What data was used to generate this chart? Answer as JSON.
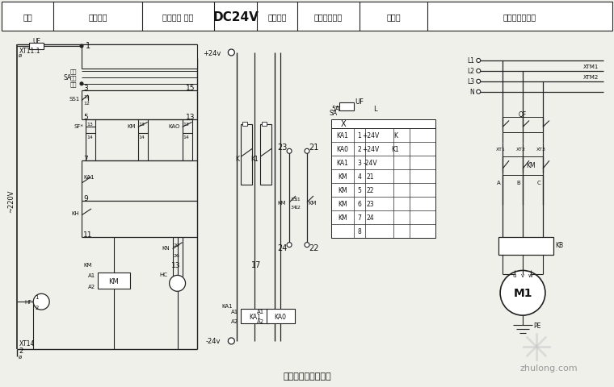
{
  "title": "排烟风机控制电路图",
  "bg": "#f0f0eb",
  "lc": "#222222",
  "header_labels": [
    "电源",
    "手动控制",
    "消防控制 自控",
    "DC24V",
    "消防外套",
    "消防返回信号",
    "端子排",
    "排烟风机主回路"
  ],
  "fig_width": 7.6,
  "fig_height": 4.81,
  "watermark": "zhulong.com",
  "table_rows": [
    [
      "KA1",
      "1",
      "+24V",
      "K"
    ],
    [
      "KA0",
      "2",
      "+24V",
      "K1"
    ],
    [
      "KA1",
      "3",
      "-24V",
      ""
    ],
    [
      "KM",
      "4",
      "21",
      ""
    ],
    [
      "KM",
      "5",
      "22",
      ""
    ],
    [
      "KM",
      "6",
      "23",
      ""
    ],
    [
      "KM",
      "7",
      "24",
      ""
    ],
    [
      "",
      "8",
      "",
      ""
    ]
  ]
}
